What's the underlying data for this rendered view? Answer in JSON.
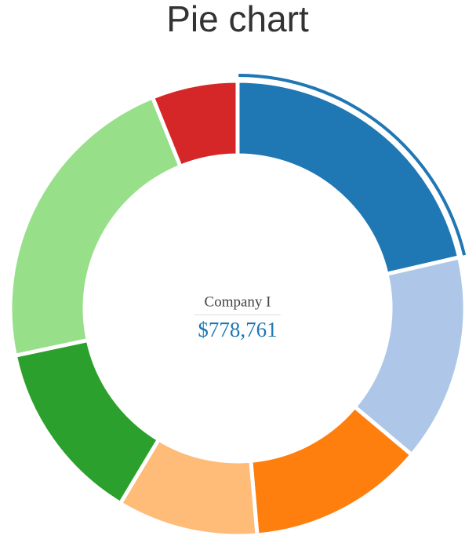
{
  "chart_data": {
    "type": "donut",
    "title": "Pie chart",
    "categories": [
      "Company I",
      null,
      null,
      null,
      null,
      null,
      null
    ],
    "values": [
      778761,
      536000,
      455000,
      364000,
      475000,
      809000,
      222000
    ],
    "value_labels": [
      "$778,761",
      null,
      null,
      null,
      null,
      null,
      null
    ],
    "colors": [
      "#1f77b4",
      "#aec7e8",
      "#ff7f0e",
      "#ffbb78",
      "#2ca02c",
      "#98df8a",
      "#d62728"
    ],
    "selected": 0
  }
}
